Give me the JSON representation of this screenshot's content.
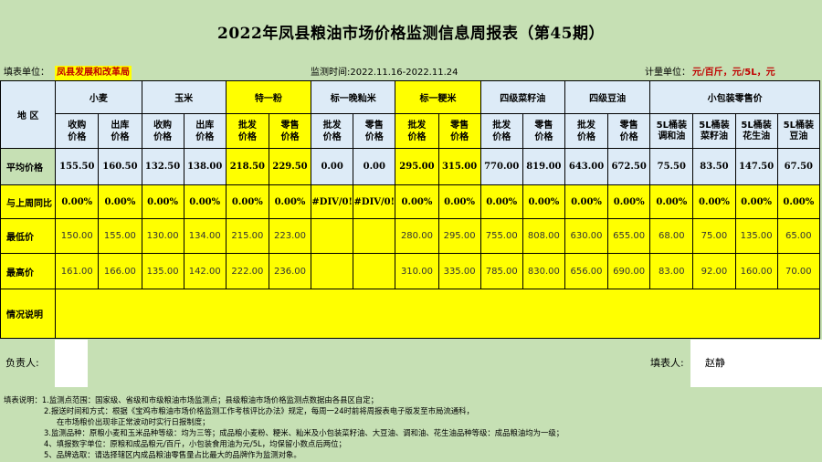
{
  "title": "2022年凤县粮油市场价格监测信息周报表（第45期）",
  "header_info": {
    "unit_label": "填表单位：",
    "unit_value": "凤县发展和改革局",
    "period": "监测时间:2022.11.16-2022.11.24",
    "measure_label": "计量单位：",
    "measure_value": "元/百斤，元/5L，元"
  },
  "table": {
    "region_header": "地  区",
    "groups": [
      {
        "name": "小麦",
        "subs": [
          "收购\n价格",
          "出库\n价格"
        ]
      },
      {
        "name": "玉米",
        "subs": [
          "收购\n价格",
          "出库\n价格"
        ]
      },
      {
        "name": "特一粉",
        "subs": [
          "批发\n价格",
          "零售\n价格"
        ]
      },
      {
        "name": "标一晚籼米",
        "subs": [
          "批发\n价格",
          "零售\n价格"
        ]
      },
      {
        "name": "标一粳米",
        "subs": [
          "批发\n价格",
          "零售\n价格"
        ]
      },
      {
        "name": "四级菜籽油",
        "subs": [
          "批发\n价格",
          "零售\n价格"
        ]
      },
      {
        "name": "四级豆油",
        "subs": [
          "批发\n价格",
          "零售\n价格"
        ]
      },
      {
        "name": "小包装零售价",
        "subs": [
          "5L桶装\n调和油",
          "5L桶装\n菜籽油",
          "5L桶装\n花生油",
          "5L桶装\n豆油"
        ]
      }
    ],
    "rows": {
      "avg": {
        "label": "平均价格",
        "values": [
          "155.50",
          "160.50",
          "132.50",
          "138.00",
          "218.50",
          "229.50",
          "0.00",
          "0.00",
          "295.00",
          "315.00",
          "770.00",
          "819.00",
          "643.00",
          "672.50",
          "75.50",
          "83.50",
          "147.50",
          "67.50"
        ]
      },
      "change": {
        "label": "与上周同比",
        "values": [
          "0.00%",
          "0.00%",
          "0.00%",
          "0.00%",
          "0.00%",
          "0.00%",
          "#DIV/0!",
          "#DIV/0!",
          "0.00%",
          "0.00%",
          "0.00%",
          "0.00%",
          "0.00%",
          "0.00%",
          "0.00%",
          "0.00%",
          "0.00%",
          "0.00%"
        ]
      },
      "min": {
        "label": "最低价",
        "values": [
          "150.00",
          "155.00",
          "130.00",
          "134.00",
          "215.00",
          "223.00",
          "",
          "",
          "280.00",
          "295.00",
          "755.00",
          "808.00",
          "630.00",
          "655.00",
          "68.00",
          "75.00",
          "135.00",
          "65.00"
        ]
      },
      "max": {
        "label": "最高价",
        "values": [
          "161.00",
          "166.00",
          "135.00",
          "142.00",
          "222.00",
          "236.00",
          "",
          "",
          "310.00",
          "335.00",
          "785.00",
          "830.00",
          "656.00",
          "690.00",
          "83.00",
          "92.00",
          "160.00",
          "70.00"
        ]
      },
      "note": {
        "label": "情况说明"
      }
    }
  },
  "signatures": {
    "responsible_label": "负责人:",
    "filler_label": "填表人:",
    "filler_name": "赵静"
  },
  "notes": [
    "填表说明：1.监测点范围：国家级、省级和市级粮油市场监测点；县级粮油市场价格监测点数据由各县区自定；",
    "2.报送时间和方式：根据《宝鸡市粮油市场价格监测工作考核评比办法》规定，每周一24时前将周报表电子版发至市局流通科，",
    "在市场粮价出现非正常波动时实行日报制度；",
    "3.监测品种：原粮小麦和玉米品种等级：均为三等；成品粮小麦粉、粳米、籼米及小包装菜籽油、大豆油、调和油、花生油品种等级：成品粮油均为一级；",
    "4、填报数字单位：原粮和成品粮元/百斤，小包装食用油为元/5L，均保留小数点后两位；",
    "5、品牌选取：请选择辖区内成品粮油零售量占比最大的品牌作为监测对象。"
  ],
  "colors": {
    "background": "#c6e0b4",
    "header_blue": "#ddebf7",
    "highlight_yellow": "#ffff00",
    "accent_red": "#c00000"
  }
}
